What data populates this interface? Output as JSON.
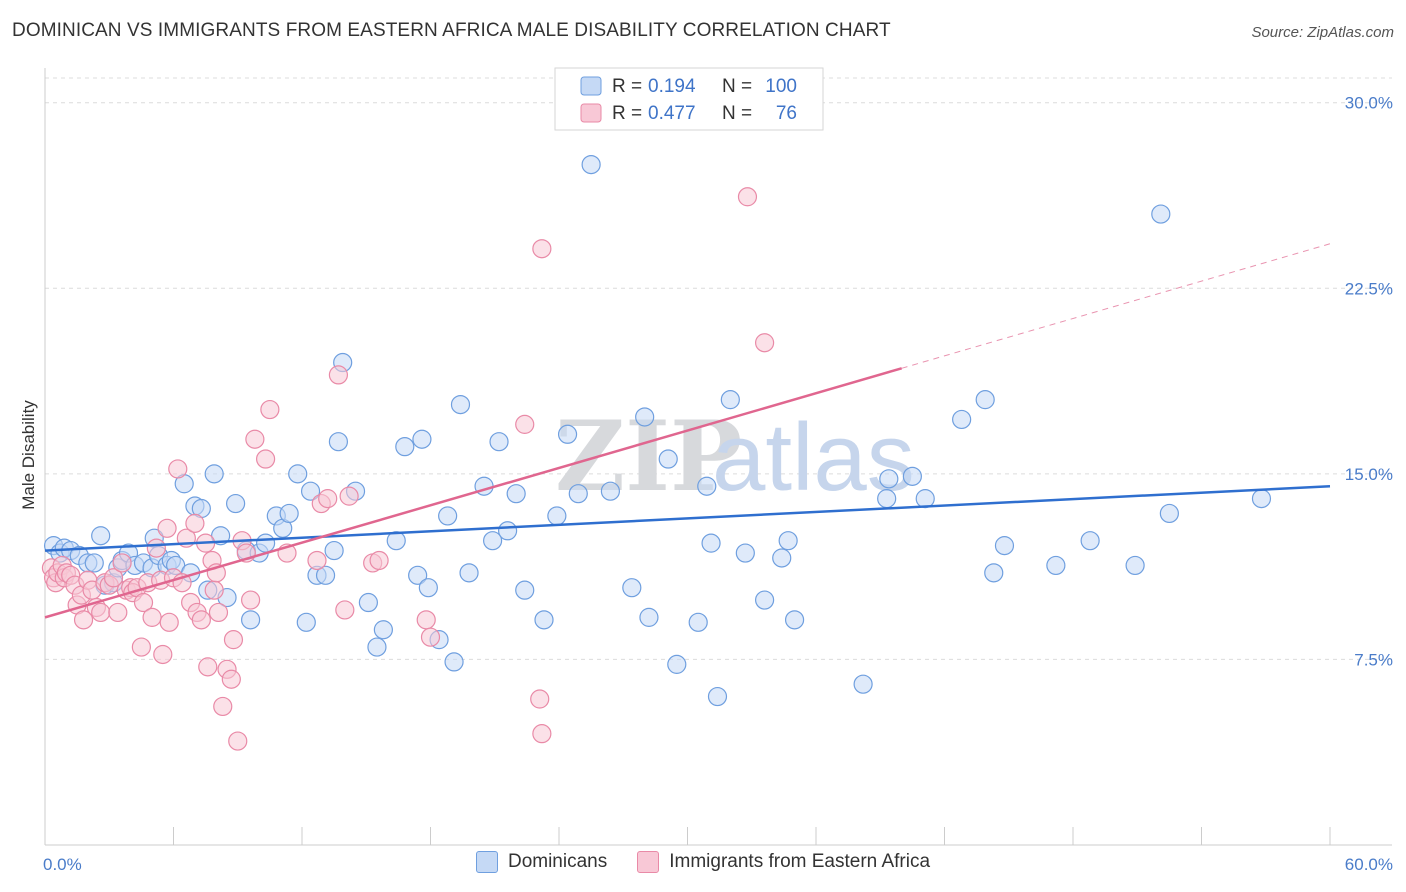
{
  "header": {
    "title": "DOMINICAN VS IMMIGRANTS FROM EASTERN AFRICA MALE DISABILITY CORRELATION CHART",
    "source": "Source: ZipAtlas.com"
  },
  "watermark": {
    "bold": "ZIP",
    "light": "atlas"
  },
  "chart_data": {
    "type": "scatter",
    "ylabel": "Male Disability",
    "x_tick_labels": [
      "0.0%",
      "60.0%"
    ],
    "y_tick_labels": [
      "7.5%",
      "15.0%",
      "22.5%",
      "30.0%"
    ],
    "y_tick_values": [
      7.5,
      15.0,
      22.5,
      30.0
    ],
    "xlim": [
      0,
      60
    ],
    "ylim": [
      0,
      31.0
    ],
    "grid": "horizontal dashed",
    "legend_position": "top-center",
    "legend": [
      {
        "r_label": "R =",
        "r_value": "0.194",
        "n_label": "N =",
        "n_value": "100"
      },
      {
        "r_label": "R =",
        "r_value": "0.477",
        "n_label": "N =",
        "n_value": "76"
      }
    ],
    "series": [
      {
        "name": "Dominicans",
        "color": "#6f9fdf",
        "fill": "#c5d9f5",
        "line_color": "#2f6fcf",
        "trend": {
          "x0": 0,
          "y0": 11.9,
          "x1": 60,
          "y1": 14.5,
          "dashed_from": null
        },
        "points": [
          [
            0.4,
            12.1
          ],
          [
            0.7,
            11.8
          ],
          [
            0.9,
            12.0
          ],
          [
            1.2,
            11.9
          ],
          [
            1.6,
            11.7
          ],
          [
            2.0,
            11.4
          ],
          [
            2.3,
            11.4
          ],
          [
            2.6,
            12.5
          ],
          [
            2.8,
            10.5
          ],
          [
            3.2,
            10.6
          ],
          [
            3.4,
            11.2
          ],
          [
            3.6,
            11.5
          ],
          [
            3.9,
            11.8
          ],
          [
            4.2,
            11.3
          ],
          [
            4.6,
            11.4
          ],
          [
            5.0,
            11.2
          ],
          [
            5.1,
            12.4
          ],
          [
            5.3,
            11.7
          ],
          [
            5.7,
            11.3
          ],
          [
            5.9,
            11.5
          ],
          [
            6.1,
            11.3
          ],
          [
            6.5,
            14.6
          ],
          [
            6.8,
            11.0
          ],
          [
            7.0,
            13.7
          ],
          [
            7.3,
            13.6
          ],
          [
            7.6,
            10.3
          ],
          [
            7.9,
            15.0
          ],
          [
            8.2,
            12.5
          ],
          [
            8.5,
            10.0
          ],
          [
            8.9,
            13.8
          ],
          [
            9.4,
            11.9
          ],
          [
            9.6,
            9.1
          ],
          [
            10.0,
            11.8
          ],
          [
            10.3,
            12.2
          ],
          [
            10.8,
            13.3
          ],
          [
            11.1,
            12.8
          ],
          [
            11.4,
            13.4
          ],
          [
            11.8,
            15.0
          ],
          [
            12.2,
            9.0
          ],
          [
            12.4,
            14.3
          ],
          [
            12.7,
            10.9
          ],
          [
            13.1,
            10.9
          ],
          [
            13.5,
            11.9
          ],
          [
            13.7,
            16.3
          ],
          [
            13.9,
            19.5
          ],
          [
            14.5,
            14.3
          ],
          [
            15.1,
            9.8
          ],
          [
            15.5,
            8.0
          ],
          [
            15.8,
            8.7
          ],
          [
            16.4,
            12.3
          ],
          [
            16.8,
            16.1
          ],
          [
            17.4,
            10.9
          ],
          [
            17.6,
            16.4
          ],
          [
            17.9,
            10.4
          ],
          [
            18.4,
            8.3
          ],
          [
            18.8,
            13.3
          ],
          [
            19.1,
            7.4
          ],
          [
            19.4,
            17.8
          ],
          [
            19.8,
            11.0
          ],
          [
            20.5,
            14.5
          ],
          [
            20.9,
            12.3
          ],
          [
            21.2,
            16.3
          ],
          [
            21.6,
            12.7
          ],
          [
            22.0,
            14.2
          ],
          [
            22.4,
            10.3
          ],
          [
            23.3,
            9.1
          ],
          [
            23.9,
            13.3
          ],
          [
            24.4,
            16.6
          ],
          [
            24.9,
            14.2
          ],
          [
            25.5,
            27.5
          ],
          [
            26.4,
            14.3
          ],
          [
            27.4,
            10.4
          ],
          [
            28.0,
            17.3
          ],
          [
            28.2,
            9.2
          ],
          [
            29.1,
            15.6
          ],
          [
            29.5,
            7.3
          ],
          [
            30.5,
            9.0
          ],
          [
            30.9,
            14.5
          ],
          [
            31.1,
            12.2
          ],
          [
            31.4,
            6.0
          ],
          [
            32.0,
            18.0
          ],
          [
            32.7,
            11.8
          ],
          [
            33.6,
            9.9
          ],
          [
            34.4,
            11.6
          ],
          [
            34.7,
            12.3
          ],
          [
            35.0,
            9.1
          ],
          [
            38.2,
            6.5
          ],
          [
            39.3,
            14.0
          ],
          [
            39.4,
            14.8
          ],
          [
            40.5,
            14.9
          ],
          [
            41.1,
            14.0
          ],
          [
            42.8,
            17.2
          ],
          [
            43.9,
            18.0
          ],
          [
            44.3,
            11.0
          ],
          [
            44.8,
            12.1
          ],
          [
            47.2,
            11.3
          ],
          [
            48.8,
            12.3
          ],
          [
            50.9,
            11.3
          ],
          [
            52.1,
            25.5
          ],
          [
            52.5,
            13.4
          ],
          [
            56.8,
            14.0
          ]
        ]
      },
      {
        "name": "Immigrants from Eastern Africa",
        "color": "#e98aa7",
        "fill": "#f8c8d6",
        "line_color": "#e0668f",
        "trend": {
          "x0": 0,
          "y0": 9.2,
          "x1": 60,
          "y1": 24.3,
          "dashed_from": 40
        },
        "points": [
          [
            0.3,
            11.2
          ],
          [
            0.4,
            10.8
          ],
          [
            0.5,
            10.6
          ],
          [
            0.6,
            11.0
          ],
          [
            0.8,
            11.3
          ],
          [
            0.9,
            10.8
          ],
          [
            1.0,
            11.0
          ],
          [
            1.2,
            10.9
          ],
          [
            1.4,
            10.5
          ],
          [
            1.5,
            9.7
          ],
          [
            1.7,
            10.1
          ],
          [
            1.8,
            9.1
          ],
          [
            2.0,
            10.7
          ],
          [
            2.2,
            10.3
          ],
          [
            2.4,
            9.6
          ],
          [
            2.6,
            9.4
          ],
          [
            2.8,
            10.6
          ],
          [
            3.0,
            10.5
          ],
          [
            3.2,
            10.8
          ],
          [
            3.4,
            9.4
          ],
          [
            3.6,
            11.4
          ],
          [
            3.8,
            10.3
          ],
          [
            4.0,
            10.4
          ],
          [
            4.1,
            10.2
          ],
          [
            4.3,
            10.4
          ],
          [
            4.5,
            8.0
          ],
          [
            4.6,
            9.8
          ],
          [
            4.8,
            10.6
          ],
          [
            5.0,
            9.2
          ],
          [
            5.2,
            12.0
          ],
          [
            5.4,
            10.7
          ],
          [
            5.5,
            7.7
          ],
          [
            5.7,
            12.8
          ],
          [
            5.8,
            9.0
          ],
          [
            6.0,
            10.8
          ],
          [
            6.2,
            15.2
          ],
          [
            6.4,
            10.6
          ],
          [
            6.6,
            12.4
          ],
          [
            6.8,
            9.8
          ],
          [
            7.0,
            13.0
          ],
          [
            7.1,
            9.4
          ],
          [
            7.3,
            9.1
          ],
          [
            7.5,
            12.2
          ],
          [
            7.6,
            7.2
          ],
          [
            7.8,
            11.5
          ],
          [
            7.9,
            10.3
          ],
          [
            8.0,
            11.0
          ],
          [
            8.1,
            9.4
          ],
          [
            8.3,
            5.6
          ],
          [
            8.5,
            7.1
          ],
          [
            8.7,
            6.7
          ],
          [
            8.8,
            8.3
          ],
          [
            9.0,
            4.2
          ],
          [
            9.2,
            12.3
          ],
          [
            9.4,
            11.8
          ],
          [
            9.6,
            9.9
          ],
          [
            9.8,
            16.4
          ],
          [
            10.3,
            15.6
          ],
          [
            10.5,
            17.6
          ],
          [
            11.3,
            11.8
          ],
          [
            12.7,
            11.5
          ],
          [
            12.9,
            13.8
          ],
          [
            13.2,
            14.0
          ],
          [
            13.7,
            19.0
          ],
          [
            14.0,
            9.5
          ],
          [
            14.2,
            14.1
          ],
          [
            15.3,
            11.4
          ],
          [
            15.6,
            11.5
          ],
          [
            17.8,
            9.1
          ],
          [
            18.0,
            8.4
          ],
          [
            22.4,
            17.0
          ],
          [
            23.1,
            5.9
          ],
          [
            23.2,
            24.1
          ],
          [
            23.2,
            4.5
          ],
          [
            32.8,
            26.2
          ],
          [
            33.6,
            20.3
          ]
        ]
      }
    ]
  }
}
